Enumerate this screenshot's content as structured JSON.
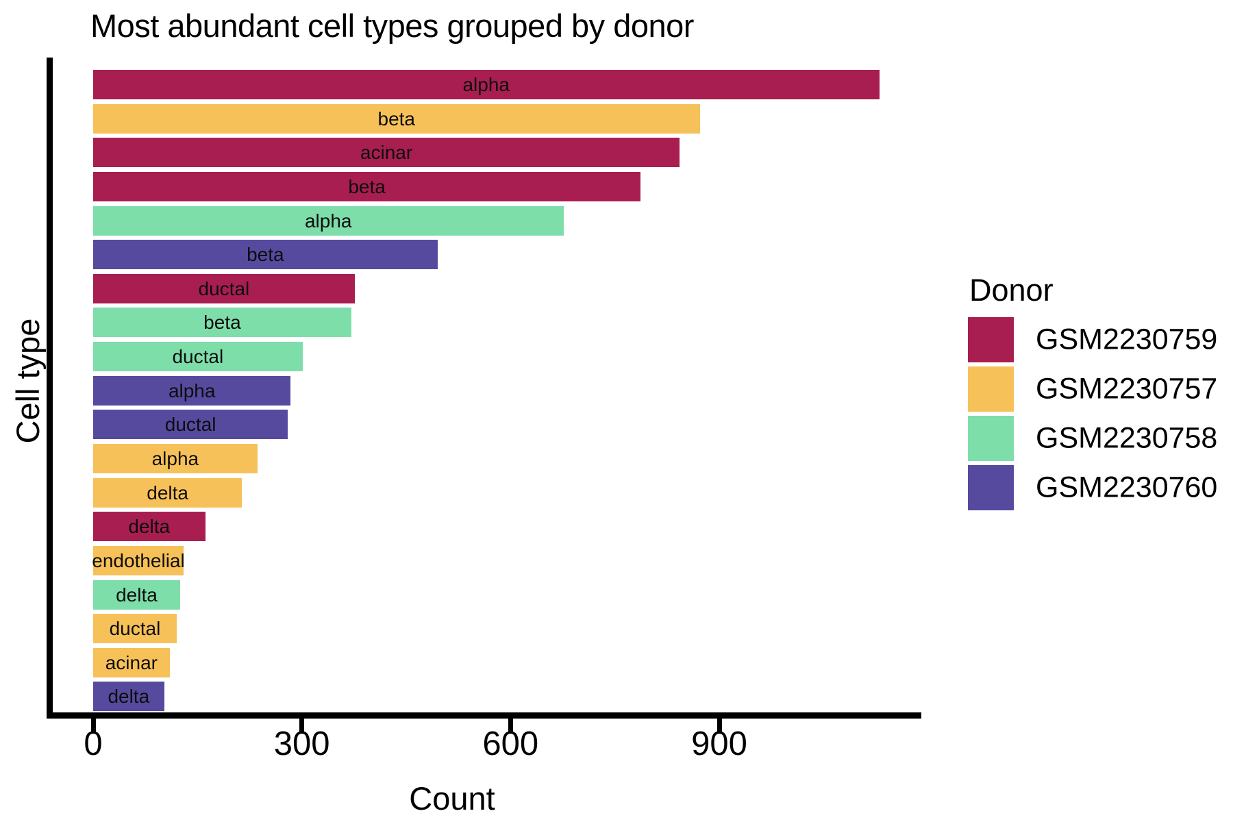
{
  "chart_data": {
    "type": "bar",
    "orientation": "horizontal",
    "title": "Most abundant cell types grouped by donor",
    "xlabel": "Count",
    "ylabel": "Cell type",
    "xlim": [
      0,
      1190
    ],
    "x_ticks": [
      0,
      300,
      600,
      900
    ],
    "grid": false,
    "legend_title": "Donor",
    "legend_position": "right",
    "donors": [
      {
        "id": "GSM2230759",
        "color": "#A81E50"
      },
      {
        "id": "GSM2230757",
        "color": "#F7C159"
      },
      {
        "id": "GSM2230758",
        "color": "#7EDEAA"
      },
      {
        "id": "GSM2230760",
        "color": "#564A9E"
      }
    ],
    "bars": [
      {
        "cell_type": "alpha",
        "donor": "GSM2230759",
        "value": 1130
      },
      {
        "cell_type": "beta",
        "donor": "GSM2230757",
        "value": 872
      },
      {
        "cell_type": "acinar",
        "donor": "GSM2230759",
        "value": 843
      },
      {
        "cell_type": "beta",
        "donor": "GSM2230759",
        "value": 787
      },
      {
        "cell_type": "alpha",
        "donor": "GSM2230758",
        "value": 676
      },
      {
        "cell_type": "beta",
        "donor": "GSM2230760",
        "value": 495
      },
      {
        "cell_type": "ductal",
        "donor": "GSM2230759",
        "value": 376
      },
      {
        "cell_type": "beta",
        "donor": "GSM2230758",
        "value": 371
      },
      {
        "cell_type": "ductal",
        "donor": "GSM2230758",
        "value": 301
      },
      {
        "cell_type": "alpha",
        "donor": "GSM2230760",
        "value": 284
      },
      {
        "cell_type": "ductal",
        "donor": "GSM2230760",
        "value": 280
      },
      {
        "cell_type": "alpha",
        "donor": "GSM2230757",
        "value": 236
      },
      {
        "cell_type": "delta",
        "donor": "GSM2230757",
        "value": 214
      },
      {
        "cell_type": "delta",
        "donor": "GSM2230759",
        "value": 161
      },
      {
        "cell_type": "endothelial",
        "donor": "GSM2230757",
        "value": 130
      },
      {
        "cell_type": "delta",
        "donor": "GSM2230758",
        "value": 125
      },
      {
        "cell_type": "ductal",
        "donor": "GSM2230757",
        "value": 120
      },
      {
        "cell_type": "acinar",
        "donor": "GSM2230757",
        "value": 110
      },
      {
        "cell_type": "delta",
        "donor": "GSM2230760",
        "value": 102
      }
    ]
  }
}
